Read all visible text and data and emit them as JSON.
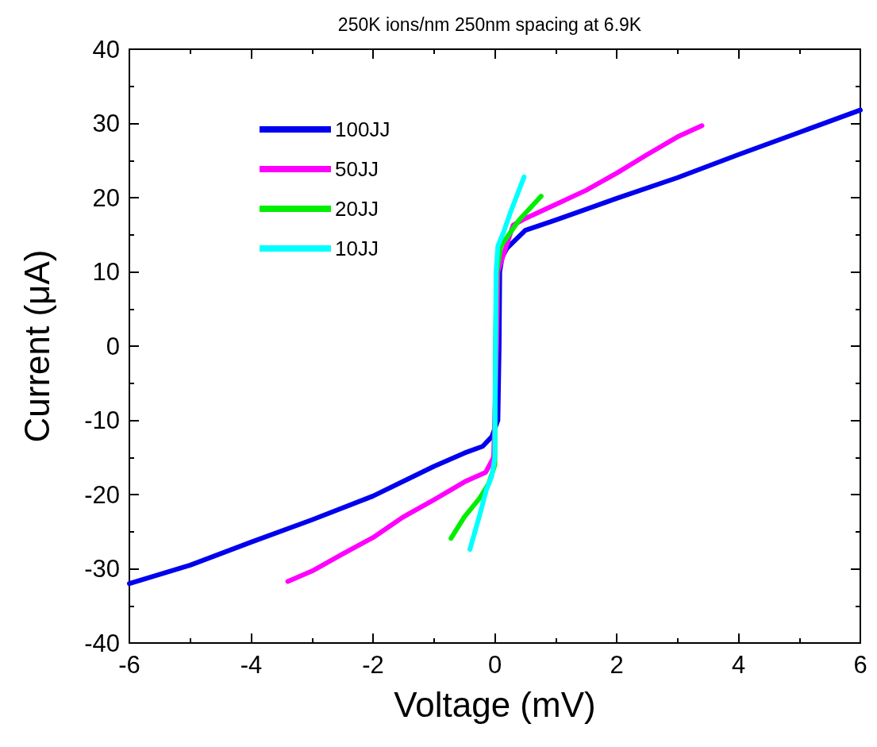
{
  "chart_data": {
    "type": "line",
    "title": "250K ions/nm 250nm spacing at 6.9K",
    "xlabel": "Voltage (mV)",
    "ylabel": "Current (μA)",
    "xlim": [
      -6,
      6
    ],
    "xticks": [
      -6,
      -4,
      -2,
      0,
      2,
      4,
      6
    ],
    "ylim": [
      -40,
      40
    ],
    "yticks": [
      -40,
      -30,
      -20,
      -10,
      0,
      10,
      20,
      30,
      40
    ],
    "grid": false,
    "legend": "top left",
    "marker": "none",
    "line_style": "solid",
    "series": [
      {
        "name": "100JJ",
        "color": "#0000ee",
        "x": [
          -6,
          -5,
          -4,
          -3,
          -2,
          -1,
          -0.5,
          -0.2,
          -0.05,
          0.05,
          0.07,
          0.08,
          0.12,
          0.2,
          0.5,
          1,
          2,
          3,
          4,
          5,
          6
        ],
        "values": [
          -32,
          -29.5,
          -26.4,
          -23.4,
          -20.2,
          -16.2,
          -14.4,
          -13.5,
          -12.2,
          -10,
          0,
          10,
          12,
          13.2,
          15.6,
          17,
          19.9,
          22.7,
          25.8,
          28.8,
          31.8
        ]
      },
      {
        "name": "50JJ",
        "color": "#ff00ff",
        "x": [
          -3.4,
          -3,
          -2.5,
          -2,
          -1.5,
          -1,
          -0.5,
          -0.15,
          -0.02,
          0.03,
          0.05,
          0.3,
          0.5,
          1,
          1.5,
          2,
          2.5,
          3,
          3.4
        ],
        "values": [
          -31.7,
          -30.3,
          -28,
          -25.8,
          -23,
          -20.7,
          -18.3,
          -17,
          -15,
          0,
          10,
          16.3,
          17.2,
          19.1,
          21,
          23.3,
          25.8,
          28.2,
          29.7
        ]
      },
      {
        "name": "20JJ",
        "color": "#00ee00",
        "x": [
          -0.72,
          -0.5,
          -0.25,
          -0.1,
          0,
          0.01,
          0.03,
          0.1,
          0.4,
          0.76
        ],
        "values": [
          -25.9,
          -23,
          -20.5,
          -18.5,
          -16,
          0,
          10,
          13.5,
          17,
          20.2
        ]
      },
      {
        "name": "10JJ",
        "color": "#00ffff",
        "x": [
          -0.41,
          -0.25,
          -0.14,
          -0.05,
          0,
          0.01,
          0.02,
          0.05,
          0.15,
          0.26,
          0.48
        ],
        "values": [
          -27.4,
          -22.8,
          -19.4,
          -17.5,
          -15,
          0,
          10,
          13.5,
          15.5,
          18.1,
          22.8
        ]
      }
    ]
  }
}
